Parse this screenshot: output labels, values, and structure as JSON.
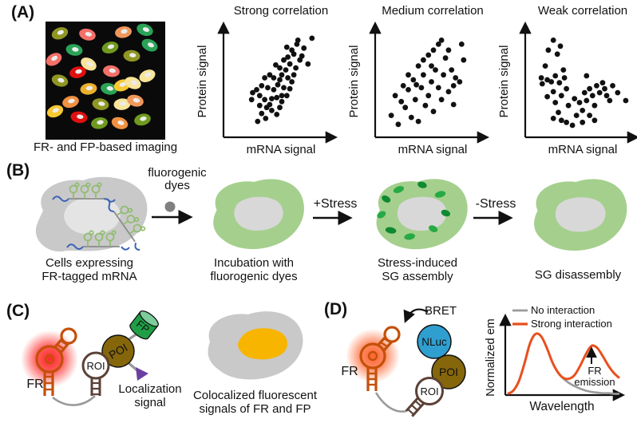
{
  "colors": {
    "cell_gray": "#c9c9c9",
    "nucleus_gray": "#e4e4e4",
    "cell_green": "#a5cf8d",
    "nucleus_in_green": "#d8d8d8",
    "granule_green": "#27aa45",
    "granule_green_dark": "#0e8a32",
    "mrna_blue": "#3a62b8",
    "hairpin_green": "#8fbc6e",
    "fr_orange": "#c4500a",
    "roi_brown": "#5b4136",
    "poi_brown": "#85660a",
    "fp_green": "#1f9e46",
    "fp_green_light": "#7ecb9c",
    "loc_purple": "#6b3fa0",
    "nluc_blue": "#2f9fd0",
    "dye_gray": "#808080",
    "colocal_yellow": "#f7b500",
    "scatter_dot": "#111111",
    "no_interaction_gray": "#9a9a9a",
    "strong_interaction_orange": "#e8501e"
  },
  "panel_a": {
    "label": "(A)",
    "micrograph_caption": "FR- and FP-based imaging",
    "micrograph_cells": [
      [
        0.12,
        0.1,
        "#8f9623",
        -20
      ],
      [
        0.35,
        0.11,
        "#f37069",
        15
      ],
      [
        0.65,
        0.09,
        "#f0975c",
        -10
      ],
      [
        0.83,
        0.07,
        "#2aa357",
        20
      ],
      [
        0.24,
        0.24,
        "#2aa357",
        10
      ],
      [
        0.54,
        0.22,
        "#6f9a1f",
        -15
      ],
      [
        0.87,
        0.2,
        "#2aa357",
        25
      ],
      [
        0.07,
        0.32,
        "#f37069",
        -30
      ],
      [
        0.36,
        0.36,
        "#f8e59a",
        30
      ],
      [
        0.72,
        0.29,
        "#8f9623",
        5
      ],
      [
        0.27,
        0.43,
        "#e01010",
        -12
      ],
      [
        0.55,
        0.42,
        "#f37069",
        8
      ],
      [
        0.85,
        0.46,
        "#f8e59a",
        -25
      ],
      [
        0.12,
        0.5,
        "#8f9623",
        18
      ],
      [
        0.36,
        0.57,
        "#eab02d",
        -8
      ],
      [
        0.53,
        0.57,
        "#2aa357",
        12
      ],
      [
        0.64,
        0.54,
        "#f7c832",
        -18
      ],
      [
        0.73,
        0.52,
        "#f8e59a",
        22
      ],
      [
        0.21,
        0.68,
        "#ef9140",
        -15
      ],
      [
        0.46,
        0.7,
        "#8f9623",
        10
      ],
      [
        0.64,
        0.7,
        "#f8e59a",
        -5
      ],
      [
        0.75,
        0.67,
        "#f0975c",
        15
      ],
      [
        0.08,
        0.76,
        "#f7c832",
        -22
      ],
      [
        0.28,
        0.81,
        "#e01010",
        8
      ],
      [
        0.45,
        0.86,
        "#6f9a1f",
        -10
      ],
      [
        0.62,
        0.86,
        "#ef9140",
        18
      ],
      [
        0.81,
        0.83,
        "#6f9a1f",
        -14
      ]
    ]
  },
  "panel_b": {
    "label": "(B)",
    "arrow1_label_line1": "fluorogenic",
    "arrow1_label_line2": "dyes",
    "arrow2_label": "+Stress",
    "arrow3_label": "-Stress",
    "step1_caption_line1": "Cells expressing",
    "step1_caption_line2": "FR-tagged mRNA",
    "step2_caption_line1": "Incubation with",
    "step2_caption_line2": "fluorogenic dyes",
    "step3_caption_line1": "Stress-induced",
    "step3_caption_line2": "SG assembly",
    "step4_caption": "SG disassembly"
  },
  "panel_c": {
    "label": "(C)",
    "fr_label": "FR",
    "roi_label": "ROI",
    "poi_label": "POI",
    "fp_label": "FP",
    "localization_label_line1": "Localization",
    "localization_label_line2": "signal",
    "caption_line1": "Colocalized fluorescent",
    "caption_line2": "signals of FR and FP"
  },
  "panel_d": {
    "label": "(D)",
    "bret_label": "BRET",
    "nluc_label": "NLuc",
    "poi_label": "POI",
    "roi_label": "ROI",
    "fr_label": "FR"
  },
  "chart_data": [
    {
      "type": "scatter",
      "title": "Strong correlation",
      "xlabel": "mRNA signal",
      "ylabel": "Protein signal",
      "xlim": [
        0,
        100
      ],
      "ylim": [
        0,
        100
      ],
      "grid": false,
      "points": [
        [
          30,
          16
        ],
        [
          26,
          8
        ],
        [
          34,
          11
        ],
        [
          38,
          25
        ],
        [
          33,
          30
        ],
        [
          28,
          34
        ],
        [
          40,
          31
        ],
        [
          45,
          15
        ],
        [
          48,
          22
        ],
        [
          50,
          28
        ],
        [
          42,
          40
        ],
        [
          36,
          42
        ],
        [
          30,
          44
        ],
        [
          25,
          40
        ],
        [
          21,
          37
        ],
        [
          46,
          45
        ],
        [
          52,
          42
        ],
        [
          55,
          34
        ],
        [
          48,
          50
        ],
        [
          42,
          52
        ],
        [
          38,
          55
        ],
        [
          33,
          52
        ],
        [
          50,
          55
        ],
        [
          56,
          52
        ],
        [
          60,
          48
        ],
        [
          58,
          41
        ],
        [
          62,
          55
        ],
        [
          54,
          60
        ],
        [
          48,
          62
        ],
        [
          44,
          65
        ],
        [
          58,
          66
        ],
        [
          64,
          62
        ],
        [
          52,
          70
        ],
        [
          56,
          73
        ],
        [
          62,
          76
        ],
        [
          68,
          70
        ],
        [
          60,
          80
        ],
        [
          55,
          83
        ],
        [
          65,
          86
        ],
        [
          72,
          82
        ],
        [
          70,
          74
        ],
        [
          76,
          66
        ],
        [
          80,
          92
        ],
        [
          50,
          34
        ],
        [
          45,
          32
        ],
        [
          40,
          19
        ],
        [
          35,
          22
        ],
        [
          28,
          24
        ],
        [
          20,
          30
        ],
        [
          66,
          90
        ]
      ]
    },
    {
      "type": "scatter",
      "title": "Medium correlation",
      "xlabel": "mRNA signal",
      "ylabel": "Protein signal",
      "xlim": [
        0,
        100
      ],
      "ylim": [
        0,
        100
      ],
      "grid": false,
      "points": [
        [
          8,
          14
        ],
        [
          15,
          5
        ],
        [
          18,
          28
        ],
        [
          12,
          34
        ],
        [
          22,
          22
        ],
        [
          25,
          40
        ],
        [
          28,
          12
        ],
        [
          32,
          30
        ],
        [
          35,
          8
        ],
        [
          38,
          42
        ],
        [
          30,
          50
        ],
        [
          25,
          55
        ],
        [
          40,
          55
        ],
        [
          45,
          34
        ],
        [
          42,
          24
        ],
        [
          48,
          48
        ],
        [
          50,
          18
        ],
        [
          52,
          60
        ],
        [
          55,
          42
        ],
        [
          58,
          30
        ],
        [
          35,
          64
        ],
        [
          40,
          70
        ],
        [
          45,
          75
        ],
        [
          50,
          80
        ],
        [
          55,
          86
        ],
        [
          58,
          90
        ],
        [
          62,
          72
        ],
        [
          65,
          80
        ],
        [
          68,
          60
        ],
        [
          70,
          44
        ],
        [
          72,
          52
        ],
        [
          76,
          48
        ],
        [
          78,
          86
        ],
        [
          80,
          70
        ],
        [
          65,
          38
        ],
        [
          60,
          55
        ],
        [
          70,
          25
        ],
        [
          48,
          64
        ],
        [
          33,
          45
        ],
        [
          20,
          44
        ]
      ]
    },
    {
      "type": "scatter",
      "title": "Weak correlation",
      "xlabel": "mRNA signal",
      "ylabel": "Protein signal",
      "xlim": [
        0,
        100
      ],
      "ylim": [
        0,
        100
      ],
      "grid": false,
      "points": [
        [
          8,
          52
        ],
        [
          12,
          64
        ],
        [
          15,
          80
        ],
        [
          20,
          90
        ],
        [
          24,
          76
        ],
        [
          27,
          84
        ],
        [
          30,
          60
        ],
        [
          9,
          46
        ],
        [
          14,
          50
        ],
        [
          18,
          48
        ],
        [
          22,
          54
        ],
        [
          26,
          47
        ],
        [
          31,
          52
        ],
        [
          20,
          38
        ],
        [
          14,
          33
        ],
        [
          22,
          27
        ],
        [
          28,
          34
        ],
        [
          33,
          41
        ],
        [
          25,
          17
        ],
        [
          20,
          11
        ],
        [
          28,
          9
        ],
        [
          33,
          7
        ],
        [
          39,
          4
        ],
        [
          35,
          24
        ],
        [
          41,
          31
        ],
        [
          46,
          27
        ],
        [
          43,
          14
        ],
        [
          49,
          19
        ],
        [
          51,
          37
        ],
        [
          53,
          29
        ],
        [
          56,
          41
        ],
        [
          59,
          34
        ],
        [
          61,
          24
        ],
        [
          63,
          44
        ],
        [
          66,
          37
        ],
        [
          69,
          47
        ],
        [
          71,
          41
        ],
        [
          73,
          34
        ],
        [
          76,
          29
        ],
        [
          79,
          44
        ],
        [
          84,
          37
        ],
        [
          56,
          14
        ],
        [
          61,
          9
        ],
        [
          49,
          7
        ],
        [
          92,
          29
        ],
        [
          53,
          54
        ]
      ]
    },
    {
      "type": "line",
      "title": "",
      "xlabel": "Wavelength",
      "ylabel": "Normalized em",
      "legend_position": "top-left",
      "annotation": {
        "line1": "FR",
        "line2": "emission",
        "x": 0.75
      },
      "x": [
        0,
        0.05,
        0.1,
        0.15,
        0.2,
        0.25,
        0.3,
        0.35,
        0.4,
        0.45,
        0.5,
        0.55,
        0.6,
        0.65,
        0.7,
        0.75,
        0.8,
        0.85,
        0.9,
        0.95,
        1
      ],
      "series": [
        {
          "name": "No interaction",
          "color": "#9a9a9a",
          "y": [
            0.02,
            0.07,
            0.22,
            0.5,
            0.82,
            0.97,
            0.93,
            0.75,
            0.52,
            0.36,
            0.26,
            0.19,
            0.14,
            0.1,
            0.07,
            0.05,
            0.04,
            0.03,
            0.03,
            0.02,
            0.02
          ]
        },
        {
          "name": "Strong interaction",
          "color": "#e8501e",
          "y": [
            0.02,
            0.07,
            0.22,
            0.5,
            0.82,
            0.97,
            0.93,
            0.75,
            0.52,
            0.36,
            0.27,
            0.26,
            0.32,
            0.47,
            0.65,
            0.78,
            0.75,
            0.62,
            0.47,
            0.35,
            0.27
          ]
        }
      ]
    }
  ]
}
